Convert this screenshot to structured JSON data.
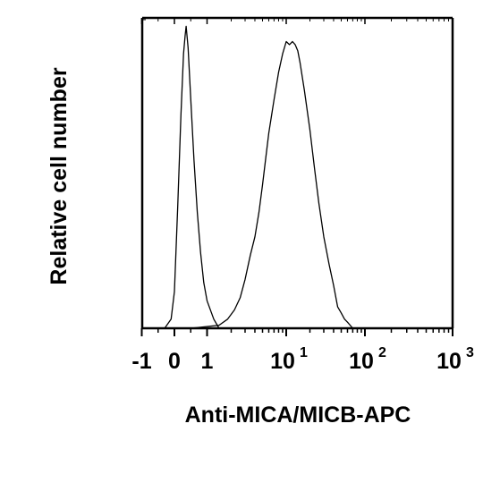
{
  "chart_data": {
    "type": "line",
    "title": "",
    "xlabel": "Anti-MICA/MICB-APC",
    "ylabel": "Relative cell number",
    "x_scale": "biexponential",
    "xlim": [
      -1,
      1000
    ],
    "ylim": [
      0,
      100
    ],
    "grid": false,
    "legend": "none",
    "x_tick_labels": [
      {
        "value": -1,
        "base": "-1",
        "exp": ""
      },
      {
        "value": 0,
        "base": "0",
        "exp": ""
      },
      {
        "value": 1,
        "base": "1",
        "exp": ""
      },
      {
        "value": 10,
        "base": "10",
        "exp": "1"
      },
      {
        "value": 100,
        "base": "10",
        "exp": "2"
      },
      {
        "value": 1000,
        "base": "10",
        "exp": "3"
      }
    ],
    "series": [
      {
        "points": [
          [
            -0.3,
            0
          ],
          [
            -0.1,
            3
          ],
          [
            0.0,
            12
          ],
          [
            0.1,
            40
          ],
          [
            0.2,
            70
          ],
          [
            0.28,
            90
          ],
          [
            0.33,
            96
          ],
          [
            0.36,
            99
          ],
          [
            0.42,
            92
          ],
          [
            0.5,
            75
          ],
          [
            0.6,
            55
          ],
          [
            0.7,
            38
          ],
          [
            0.8,
            25
          ],
          [
            0.9,
            15
          ],
          [
            1.0,
            9
          ],
          [
            1.2,
            3
          ],
          [
            1.4,
            0
          ]
        ]
      },
      {
        "points": [
          [
            0.5,
            0
          ],
          [
            1.4,
            1
          ],
          [
            1.8,
            3
          ],
          [
            2.2,
            6
          ],
          [
            2.6,
            10
          ],
          [
            3.0,
            16
          ],
          [
            3.5,
            24
          ],
          [
            4.0,
            30
          ],
          [
            4.5,
            38
          ],
          [
            5.0,
            47
          ],
          [
            5.5,
            56
          ],
          [
            6.0,
            64
          ],
          [
            7.0,
            75
          ],
          [
            8.0,
            84
          ],
          [
            9.0,
            90
          ],
          [
            10.0,
            94
          ],
          [
            11.0,
            93
          ],
          [
            12.0,
            94
          ],
          [
            13.0,
            93
          ],
          [
            14.0,
            91
          ],
          [
            15.0,
            87
          ],
          [
            17.0,
            78
          ],
          [
            20.0,
            65
          ],
          [
            23.0,
            52
          ],
          [
            26.0,
            41
          ],
          [
            30.0,
            30
          ],
          [
            35.0,
            21
          ],
          [
            40.0,
            14
          ],
          [
            45.0,
            7
          ],
          [
            50.0,
            5
          ],
          [
            55.0,
            3
          ],
          [
            60.0,
            2
          ],
          [
            70.0,
            0
          ]
        ]
      }
    ]
  }
}
